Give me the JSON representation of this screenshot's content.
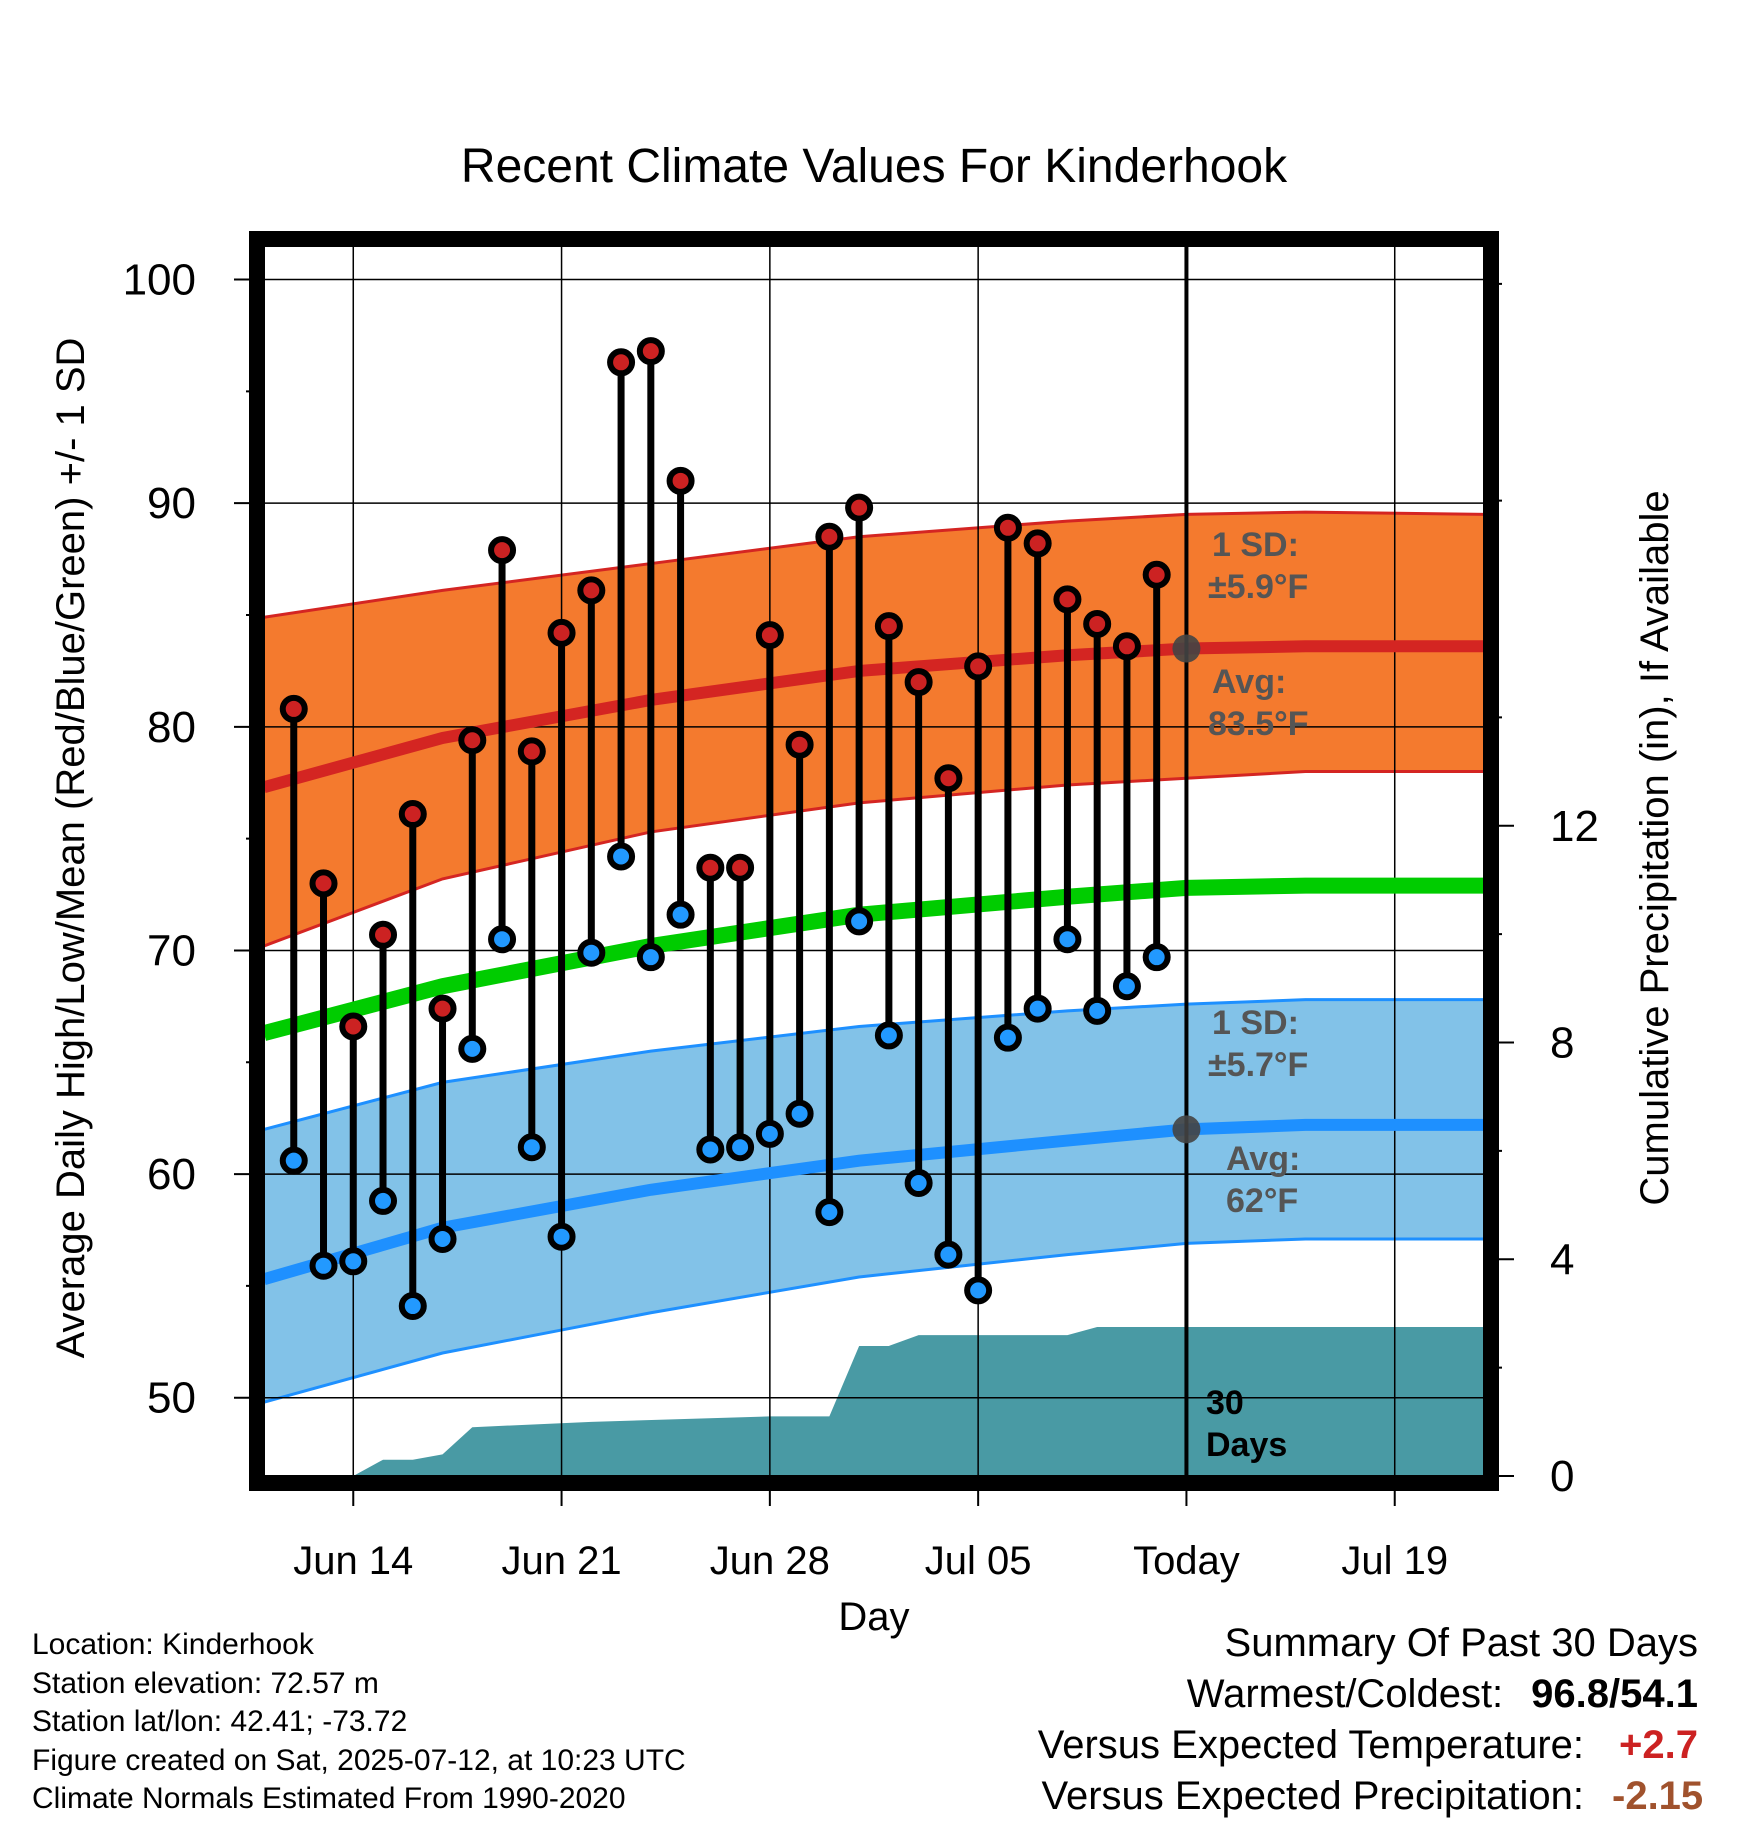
{
  "title": "Recent Climate Values For Kinderhook",
  "left_axis_label": "Average Daily High/Low/Mean (Red/Blue/Green) +/- 1 SD",
  "right_axis_label": "Cumulative Precipitation (in), If Available",
  "x_axis_label": "Day",
  "annotations": {
    "high_sd_line1": "1 SD:",
    "high_sd_line2": "±5.9°F",
    "high_avg_line1": "Avg:",
    "high_avg_line2": "83.5°F",
    "low_sd_line1": "1 SD:",
    "low_sd_line2": "±5.7°F",
    "low_avg_line1": "Avg:",
    "low_avg_line2": "62°F",
    "precip_line1": "30",
    "precip_line2": "Days"
  },
  "metadata": {
    "location": "Location: Kinderhook",
    "elevation": "Station elevation: 72.57 m",
    "latlon": "Station lat/lon: 42.41; -73.72",
    "created": "Figure created on Sat, 2025-07-12, at 10:23 UTC",
    "normals": "Climate Normals Estimated From 1990-2020"
  },
  "summary": {
    "heading": "Summary Of Past 30 Days",
    "warmest_coldest_label": "Warmest/Coldest:",
    "warmest_coldest_value": "96.8/54.1",
    "temp_label": "Versus Expected Temperature:",
    "temp_value": "+2.7",
    "precip_label": "Versus Expected Precipitation:",
    "precip_value": "-2.15"
  },
  "colors": {
    "high_band": "#f47a2e",
    "high_avg": "#d42522",
    "mean_line": "#00cc00",
    "low_band": "#82c2e8",
    "low_avg": "#1e90ff",
    "precip_fill": "#499aa4",
    "high_dot": "#cc2222",
    "low_dot": "#2299ff",
    "annotation_text": "#555555",
    "temp_positive": "#cc2222",
    "precip_negative": "#a0522d"
  },
  "chart_data": {
    "type": "line",
    "x_axis": {
      "type": "date",
      "range": [
        "2025-06-11",
        "2025-07-22"
      ],
      "tick_labels": [
        {
          "date": "2025-06-14",
          "label": "Jun 14"
        },
        {
          "date": "2025-06-21",
          "label": "Jun 21"
        },
        {
          "date": "2025-06-28",
          "label": "Jun 28"
        },
        {
          "date": "2025-07-05",
          "label": "Jul 05"
        },
        {
          "date": "2025-07-12",
          "label": "Today"
        },
        {
          "date": "2025-07-19",
          "label": "Jul 19"
        }
      ],
      "today": "2025-07-12"
    },
    "y_left": {
      "range": [
        46.5,
        101.5
      ],
      "ticks": [
        50,
        60,
        70,
        80,
        90,
        100
      ]
    },
    "y_right": {
      "range": [
        0,
        22.7
      ],
      "ticks": [
        0,
        4,
        8,
        12
      ]
    },
    "grid": true,
    "daily_observations": [
      {
        "date": "2025-06-12",
        "high": 80.8,
        "low": 60.6
      },
      {
        "date": "2025-06-13",
        "high": 73.0,
        "low": 55.9
      },
      {
        "date": "2025-06-14",
        "high": 66.6,
        "low": 56.1
      },
      {
        "date": "2025-06-15",
        "high": 70.7,
        "low": 58.8
      },
      {
        "date": "2025-06-16",
        "high": 76.1,
        "low": 54.1
      },
      {
        "date": "2025-06-17",
        "high": 67.4,
        "low": 57.1
      },
      {
        "date": "2025-06-18",
        "high": 79.4,
        "low": 65.6
      },
      {
        "date": "2025-06-19",
        "high": 87.9,
        "low": 70.5
      },
      {
        "date": "2025-06-20",
        "high": 78.9,
        "low": 61.2
      },
      {
        "date": "2025-06-21",
        "high": 84.2,
        "low": 57.2
      },
      {
        "date": "2025-06-22",
        "high": 86.1,
        "low": 69.9
      },
      {
        "date": "2025-06-23",
        "high": 96.3,
        "low": 74.2
      },
      {
        "date": "2025-06-24",
        "high": 96.8,
        "low": 69.7
      },
      {
        "date": "2025-06-25",
        "high": 91.0,
        "low": 71.6
      },
      {
        "date": "2025-06-26",
        "high": 73.7,
        "low": 61.1
      },
      {
        "date": "2025-06-27",
        "high": 73.7,
        "low": 61.2
      },
      {
        "date": "2025-06-28",
        "high": 84.1,
        "low": 61.8
      },
      {
        "date": "2025-06-29",
        "high": 79.2,
        "low": 62.7
      },
      {
        "date": "2025-06-30",
        "high": 88.5,
        "low": 58.3
      },
      {
        "date": "2025-07-01",
        "high": 89.8,
        "low": 71.3
      },
      {
        "date": "2025-07-02",
        "high": 84.5,
        "low": 66.2
      },
      {
        "date": "2025-07-03",
        "high": 82.0,
        "low": 59.6
      },
      {
        "date": "2025-07-04",
        "high": 77.7,
        "low": 56.4
      },
      {
        "date": "2025-07-05",
        "high": 82.7,
        "low": 54.8
      },
      {
        "date": "2025-07-06",
        "high": 88.9,
        "low": 66.1
      },
      {
        "date": "2025-07-07",
        "high": 88.2,
        "low": 67.4
      },
      {
        "date": "2025-07-08",
        "high": 85.7,
        "low": 70.5
      },
      {
        "date": "2025-07-09",
        "high": 84.6,
        "low": 67.3
      },
      {
        "date": "2025-07-10",
        "high": 83.6,
        "low": 68.4
      },
      {
        "date": "2025-07-11",
        "high": 86.8,
        "low": 69.7
      }
    ],
    "normal_high": {
      "dates": [
        "2025-06-11",
        "2025-06-17",
        "2025-06-24",
        "2025-07-01",
        "2025-07-08",
        "2025-07-12",
        "2025-07-16",
        "2025-07-22"
      ],
      "values": [
        77.3,
        79.5,
        81.2,
        82.5,
        83.2,
        83.5,
        83.6,
        83.6
      ]
    },
    "normal_high_sd_band": {
      "dates": [
        "2025-06-11",
        "2025-06-17",
        "2025-06-24",
        "2025-07-01",
        "2025-07-08",
        "2025-07-12",
        "2025-07-16",
        "2025-07-22"
      ],
      "upper": [
        84.9,
        86.1,
        87.3,
        88.5,
        89.2,
        89.5,
        89.6,
        89.5
      ],
      "lower": [
        70.2,
        73.2,
        75.3,
        76.6,
        77.4,
        77.7,
        78.0,
        78.0
      ]
    },
    "normal_mean": {
      "dates": [
        "2025-06-11",
        "2025-06-17",
        "2025-06-24",
        "2025-07-01",
        "2025-07-08",
        "2025-07-12",
        "2025-07-16",
        "2025-07-22"
      ],
      "values": [
        66.3,
        68.4,
        70.2,
        71.6,
        72.4,
        72.8,
        72.9,
        72.9
      ]
    },
    "normal_low": {
      "dates": [
        "2025-06-11",
        "2025-06-17",
        "2025-06-24",
        "2025-07-01",
        "2025-07-08",
        "2025-07-12",
        "2025-07-16",
        "2025-07-22"
      ],
      "values": [
        55.3,
        57.6,
        59.3,
        60.6,
        61.5,
        62.0,
        62.2,
        62.2
      ]
    },
    "normal_low_sd_band": {
      "dates": [
        "2025-06-11",
        "2025-06-17",
        "2025-06-24",
        "2025-07-01",
        "2025-07-08",
        "2025-07-12",
        "2025-07-16",
        "2025-07-22"
      ],
      "upper": [
        62.0,
        64.1,
        65.5,
        66.6,
        67.3,
        67.6,
        67.8,
        67.8
      ],
      "lower": [
        49.8,
        52.0,
        53.8,
        55.4,
        56.4,
        56.9,
        57.1,
        57.1
      ]
    },
    "cumulative_precip": {
      "dates": [
        "2025-06-11",
        "2025-06-14",
        "2025-06-15",
        "2025-06-16",
        "2025-06-17",
        "2025-06-18",
        "2025-06-22",
        "2025-06-28",
        "2025-06-30",
        "2025-07-01",
        "2025-07-02",
        "2025-07-03",
        "2025-07-05",
        "2025-07-08",
        "2025-07-09",
        "2025-07-22"
      ],
      "values": [
        0,
        0,
        0.3,
        0.3,
        0.4,
        0.9,
        1.0,
        1.1,
        1.1,
        2.4,
        2.4,
        2.6,
        2.6,
        2.6,
        2.75,
        2.75
      ]
    },
    "reference_points": [
      {
        "date": "2025-07-12",
        "value": 83.5,
        "label": "high average today"
      },
      {
        "date": "2025-07-12",
        "value": 62.0,
        "label": "low average today"
      }
    ]
  }
}
